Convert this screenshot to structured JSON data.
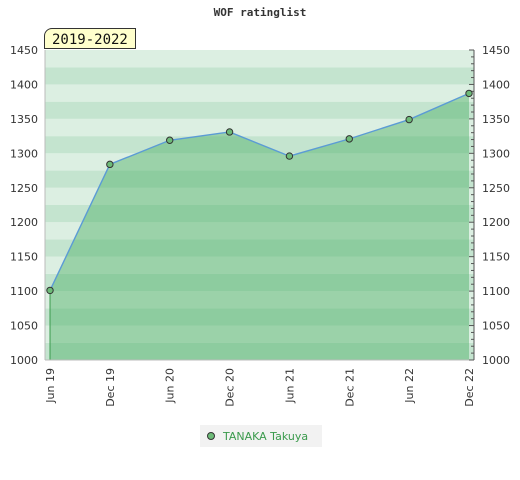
{
  "chart_data": {
    "type": "area",
    "title": "WOF ratinglist",
    "period_label": "2019-2022",
    "x": [
      "Jun 19",
      "Dec 19",
      "Jun 20",
      "Dec 20",
      "Jun 21",
      "Dec 21",
      "Jun 22",
      "Dec 22"
    ],
    "series": [
      {
        "name": "TANAKA Takuya",
        "values": [
          1101,
          1284,
          1319,
          1331,
          1296,
          1321,
          1349,
          1387
        ]
      }
    ],
    "ylim": [
      1000,
      1450
    ],
    "yticks": [
      1000,
      1050,
      1100,
      1150,
      1200,
      1250,
      1300,
      1350,
      1400,
      1450
    ],
    "grid": true,
    "legend_position": "bottom",
    "colors": {
      "line": "#5b9bd5",
      "marker_fill": "#6dbb78",
      "band_light": "#dcefe2",
      "band_dark": "#c4e4cf",
      "area": "#4caf63"
    }
  }
}
